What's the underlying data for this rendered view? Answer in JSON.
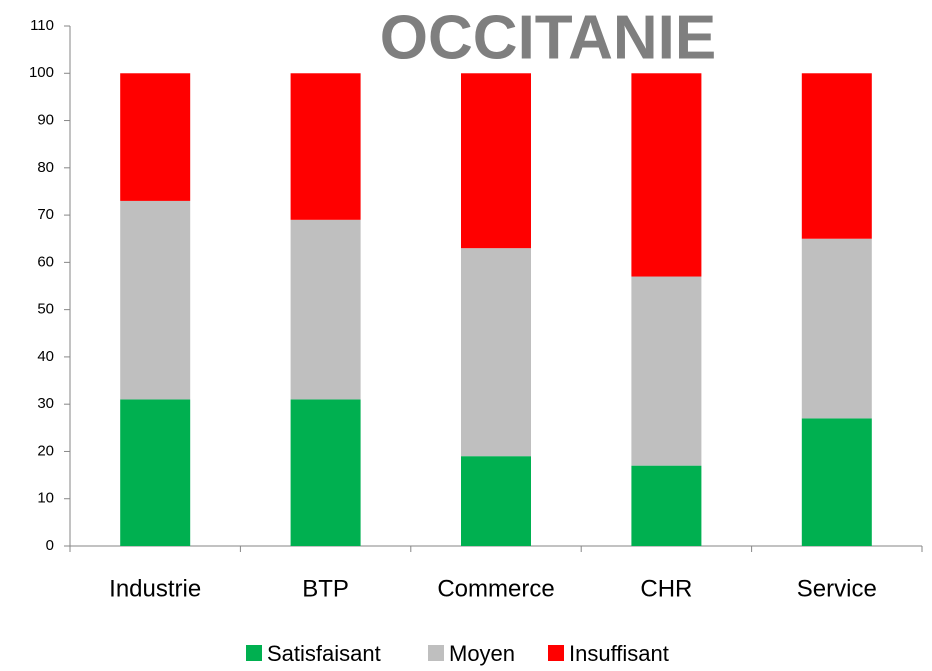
{
  "chart_data": {
    "type": "stacked_bar",
    "title": "OCCITANIE",
    "categories": [
      "Industrie",
      "BTP",
      "Commerce",
      "CHR",
      "Service"
    ],
    "series": [
      {
        "name": "Satisfaisant",
        "color": "#00b050",
        "values": [
          31,
          31,
          19,
          17,
          27
        ]
      },
      {
        "name": "Moyen",
        "color": "#bfbfbf",
        "values": [
          42,
          38,
          44,
          40,
          38
        ]
      },
      {
        "name": "Insuffisant",
        "color": "#ff0000",
        "values": [
          27,
          31,
          37,
          43,
          35
        ]
      }
    ],
    "ylim": [
      0,
      110
    ],
    "yticks": [
      0,
      10,
      20,
      30,
      40,
      50,
      60,
      70,
      80,
      90,
      100,
      110
    ],
    "grid": false,
    "legend": "bottom"
  }
}
